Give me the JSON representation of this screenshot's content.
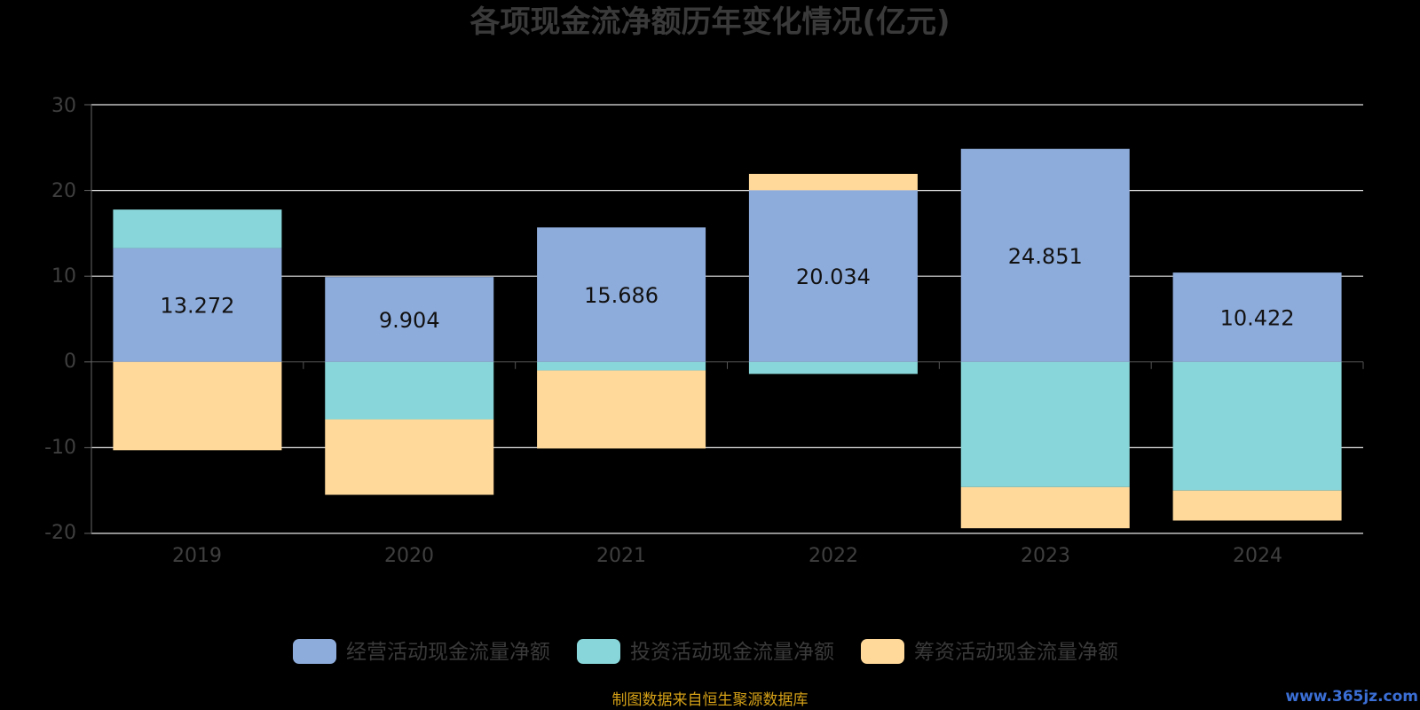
{
  "chart_data": {
    "type": "bar",
    "stacked": true,
    "title": "各项现金流净额历年变化情况(亿元)",
    "categories": [
      "2019",
      "2020",
      "2021",
      "2022",
      "2023",
      "2024"
    ],
    "series": [
      {
        "name": "经营活动现金流量净额",
        "color": "#8eacdb",
        "values": [
          13.272,
          9.904,
          15.686,
          20.034,
          24.851,
          10.422
        ]
      },
      {
        "name": "投资活动现金流量净额",
        "color": "#88d6d9",
        "values": [
          4.5,
          -6.7,
          -1.0,
          -1.4,
          -14.6,
          -15.0
        ]
      },
      {
        "name": "筹资活动现金流量净额",
        "color": "#ffd99a",
        "values": [
          -10.3,
          -8.8,
          -9.1,
          1.9,
          -4.8,
          -3.5
        ]
      }
    ],
    "data_labels": [
      "13.272",
      "9.904",
      "15.686",
      "20.034",
      "24.851",
      "10.422"
    ],
    "yticks": [
      "30",
      "20",
      "10",
      "0",
      "-10",
      "-20"
    ],
    "ylim": [
      -20,
      30
    ],
    "grid": true,
    "legend_position": "bottom"
  },
  "source_note": "制图数据来自恒生聚源数据库",
  "watermark": "www.365jz.com"
}
